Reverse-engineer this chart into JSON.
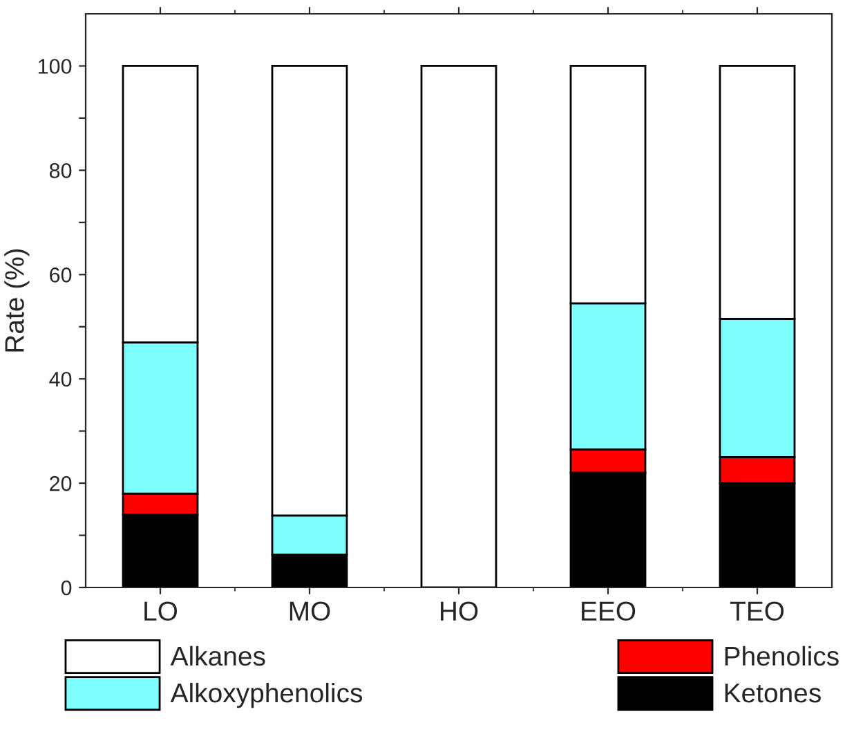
{
  "chart_data": {
    "type": "bar",
    "stacked": true,
    "ylabel": "Rate (%)",
    "categories": [
      "LO",
      "MO",
      "HO",
      "EEO",
      "TEO"
    ],
    "series": [
      {
        "name": "Ketones",
        "color": "#000000",
        "values": [
          14,
          6.3,
          0,
          22,
          20
        ]
      },
      {
        "name": "Phenolics",
        "color": "#ff0000",
        "values": [
          4,
          0,
          0,
          4.5,
          5
        ]
      },
      {
        "name": "Alkoxyphenolics",
        "color": "#80ffff",
        "values": [
          29,
          7.5,
          0,
          28,
          26.5
        ]
      },
      {
        "name": "Alkanes",
        "color": "#ffffff",
        "values": [
          53,
          86.2,
          100,
          45.5,
          48.5
        ]
      }
    ],
    "ylim": [
      0,
      110
    ],
    "yticks": [
      0,
      {
        "value": 10,
        "label": null
      },
      20,
      {
        "value": 30,
        "label": null
      },
      40,
      {
        "value": 50,
        "label": null
      },
      60,
      {
        "value": 70,
        "label": null
      },
      80,
      {
        "value": 90,
        "label": null
      },
      100
    ],
    "legend": "bottom",
    "grid": false
  }
}
